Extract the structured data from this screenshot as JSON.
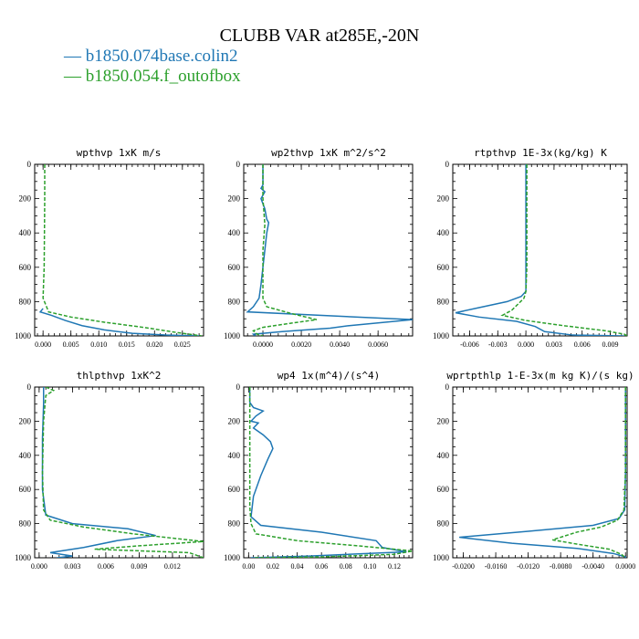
{
  "title": "CLUBB VAR at285E,-20N",
  "legend": [
    {
      "label": "— b1850.074base.colin2",
      "color": "#1f77b4"
    },
    {
      "label": "— b1850.054.f_outofbox",
      "color": "#2ca02c"
    }
  ],
  "chart_data": [
    {
      "type": "line",
      "title": "wpthvp  1xK m/s",
      "xlim": [
        -0.0015,
        0.0288
      ],
      "ylim": [
        1000,
        0
      ],
      "xticks": [
        "0.000",
        "0.005",
        "0.010",
        "0.015",
        "0.020",
        "0.025"
      ],
      "xtick_values": [
        0,
        0.005,
        0.01,
        0.015,
        0.02,
        0.025
      ],
      "yticks": [
        0,
        200,
        400,
        600,
        800,
        1000
      ],
      "series": [
        {
          "color": "#1f77b4",
          "dash": false,
          "points": [
            [
              0,
              840
            ],
            [
              -0.0005,
              860
            ],
            [
              0.0015,
              880
            ],
            [
              0.004,
              910
            ],
            [
              0.007,
              940
            ],
            [
              0.011,
              965
            ],
            [
              0.016,
              985
            ],
            [
              0.022,
              995
            ],
            [
              0.028,
              1000
            ]
          ]
        },
        {
          "color": "#2ca02c",
          "dash": true,
          "points": [
            [
              0.0003,
              0
            ],
            [
              0.0003,
              200
            ],
            [
              0.0002,
              600
            ],
            [
              0,
              780
            ],
            [
              0.001,
              860
            ],
            [
              0.005,
              890
            ],
            [
              0.011,
              920
            ],
            [
              0.018,
              950
            ],
            [
              0.024,
              980
            ],
            [
              0.0285,
              1000
            ]
          ]
        }
      ]
    },
    {
      "type": "line",
      "title": "wp2thvp  1xK m^2/s^2",
      "xlim": [
        -0.001,
        0.0078
      ],
      "ylim": [
        1000,
        0
      ],
      "xticks": [
        "0.0000",
        "0.0020",
        "0.0040",
        "0.0060"
      ],
      "xtick_values": [
        0,
        0.002,
        0.004,
        0.006
      ],
      "yticks": [
        0,
        200,
        400,
        600,
        800,
        1000
      ],
      "series": [
        {
          "color": "#1f77b4",
          "dash": false,
          "points": [
            [
              0,
              0
            ],
            [
              0,
              120
            ],
            [
              -0.0001,
              140
            ],
            [
              0.0001,
              160
            ],
            [
              -0.0001,
              200
            ],
            [
              0.0001,
              260
            ],
            [
              0.0002,
              320
            ],
            [
              0.0003,
              340
            ],
            [
              0.0002,
              400
            ],
            [
              0.0001,
              500
            ],
            [
              0,
              600
            ],
            [
              -0.0001,
              700
            ],
            [
              -0.0002,
              780
            ],
            [
              -0.0005,
              830
            ],
            [
              -0.0008,
              860
            ],
            [
              0.0078,
              905
            ],
            [
              0.0045,
              940
            ],
            [
              0.0035,
              955
            ],
            [
              0.001,
              975
            ],
            [
              -0.0005,
              990
            ],
            [
              -0.0004,
              1000
            ]
          ]
        },
        {
          "color": "#2ca02c",
          "dash": true,
          "points": [
            [
              0,
              0
            ],
            [
              0,
              120
            ],
            [
              0,
              200
            ],
            [
              0.0001,
              350
            ],
            [
              0,
              500
            ],
            [
              0,
              700
            ],
            [
              0,
              780
            ],
            [
              0.0002,
              830
            ],
            [
              0.0015,
              870
            ],
            [
              0.0028,
              905
            ],
            [
              0.0012,
              930
            ],
            [
              0,
              950
            ],
            [
              -0.0005,
              970
            ],
            [
              -0.0003,
              990
            ],
            [
              0,
              1000
            ]
          ]
        }
      ]
    },
    {
      "type": "line",
      "title": "rtpthvp  1E-3x(kg/kg) K",
      "xlim": [
        -0.0078,
        0.0108
      ],
      "ylim": [
        1000,
        0
      ],
      "xticks": [
        "-0.006",
        "-0.003",
        "0.000",
        "0.003",
        "0.006",
        "0.009"
      ],
      "xtick_values": [
        -0.006,
        -0.003,
        0,
        0.003,
        0.006,
        0.009
      ],
      "yticks": [
        0,
        200,
        400,
        600,
        800,
        1000
      ],
      "series": [
        {
          "color": "#1f77b4",
          "dash": false,
          "points": [
            [
              0,
              0
            ],
            [
              0,
              200
            ],
            [
              0,
              500
            ],
            [
              0,
              740
            ],
            [
              -0.0005,
              770
            ],
            [
              -0.002,
              800
            ],
            [
              -0.005,
              835
            ],
            [
              -0.0075,
              865
            ],
            [
              -0.005,
              890
            ],
            [
              -0.001,
              915
            ],
            [
              0.001,
              945
            ],
            [
              0.002,
              975
            ],
            [
              0.005,
              995
            ],
            [
              0.0105,
              1000
            ]
          ]
        },
        {
          "color": "#2ca02c",
          "dash": true,
          "points": [
            [
              0.0001,
              0
            ],
            [
              0.0001,
              300
            ],
            [
              0.0001,
              600
            ],
            [
              0,
              740
            ],
            [
              -0.0002,
              780
            ],
            [
              -0.0015,
              850
            ],
            [
              -0.0025,
              880
            ],
            [
              0,
              910
            ],
            [
              0.004,
              940
            ],
            [
              0.0085,
              970
            ],
            [
              0.0105,
              990
            ],
            [
              0.0108,
              1000
            ]
          ]
        }
      ]
    },
    {
      "type": "line",
      "title": "thlpthvp  1xK^2",
      "xlim": [
        -0.0004,
        0.0148
      ],
      "ylim": [
        1000,
        0
      ],
      "xticks": [
        "0.000",
        "0.003",
        "0.006",
        "0.009",
        "0.012"
      ],
      "xtick_values": [
        0,
        0.003,
        0.006,
        0.009,
        0.012
      ],
      "yticks": [
        0,
        200,
        400,
        600,
        800,
        1000
      ],
      "series": [
        {
          "color": "#1f77b4",
          "dash": false,
          "points": [
            [
              0.0004,
              0
            ],
            [
              0.0004,
              100
            ],
            [
              0.0003,
              300
            ],
            [
              0.0003,
              600
            ],
            [
              0.0006,
              750
            ],
            [
              0.003,
              800
            ],
            [
              0.008,
              830
            ],
            [
              0.0105,
              870
            ],
            [
              0.007,
              900
            ],
            [
              0.004,
              940
            ],
            [
              0.001,
              970
            ],
            [
              0.003,
              990
            ],
            [
              0.0016,
              1000
            ]
          ]
        },
        {
          "color": "#2ca02c",
          "dash": true,
          "points": [
            [
              0.0006,
              0
            ],
            [
              0.0013,
              20
            ],
            [
              0.0006,
              50
            ],
            [
              0.0004,
              200
            ],
            [
              0.0003,
              500
            ],
            [
              0.0004,
              720
            ],
            [
              0.001,
              780
            ],
            [
              0.004,
              820
            ],
            [
              0.0085,
              860
            ],
            [
              0.0148,
              905
            ],
            [
              0.009,
              930
            ],
            [
              0.005,
              950
            ],
            [
              0.0135,
              970
            ],
            [
              0.0148,
              1000
            ]
          ]
        }
      ]
    },
    {
      "type": "line",
      "title": "wp4  1x(m^4)/(s^4)",
      "xlim": [
        -0.004,
        0.135
      ],
      "ylim": [
        1000,
        0
      ],
      "xticks": [
        "0.00",
        "0.02",
        "0.04",
        "0.06",
        "0.08",
        "0.10",
        "0.12"
      ],
      "xtick_values": [
        0,
        0.02,
        0.04,
        0.06,
        0.08,
        0.1,
        0.12
      ],
      "yticks": [
        0,
        200,
        400,
        600,
        800,
        1000
      ],
      "series": [
        {
          "color": "#1f77b4",
          "dash": false,
          "points": [
            [
              0.001,
              0
            ],
            [
              0.001,
              90
            ],
            [
              0.004,
              120
            ],
            [
              0.012,
              140
            ],
            [
              0.006,
              170
            ],
            [
              0.002,
              200
            ],
            [
              0.008,
              210
            ],
            [
              0.004,
              240
            ],
            [
              0.012,
              280
            ],
            [
              0.018,
              320
            ],
            [
              0.02,
              360
            ],
            [
              0.016,
              420
            ],
            [
              0.01,
              520
            ],
            [
              0.004,
              640
            ],
            [
              0.002,
              760
            ],
            [
              0.01,
              810
            ],
            [
              0.06,
              850
            ],
            [
              0.105,
              900
            ],
            [
              0.11,
              940
            ],
            [
              0.13,
              965
            ],
            [
              0.05,
              990
            ],
            [
              0.002,
              1000
            ]
          ]
        },
        {
          "color": "#2ca02c",
          "dash": true,
          "points": [
            [
              0.001,
              0
            ],
            [
              0.001,
              100
            ],
            [
              0.001,
              300
            ],
            [
              0.001,
              500
            ],
            [
              0.001,
              700
            ],
            [
              0.002,
              800
            ],
            [
              0.006,
              860
            ],
            [
              0.04,
              900
            ],
            [
              0.09,
              930
            ],
            [
              0.135,
              960
            ],
            [
              0.12,
              980
            ],
            [
              0.06,
              995
            ],
            [
              0.004,
              1000
            ]
          ]
        }
      ]
    },
    {
      "type": "line",
      "title": "wprtpthlp  1-E-3x(m kg K)/(s kg)",
      "xlim": [
        -0.0213,
        0.0002
      ],
      "ylim": [
        1000,
        0
      ],
      "xticks": [
        "-0.0200",
        "-0.0160",
        "-0.0120",
        "-0.0080",
        "-0.0040",
        "0.0000"
      ],
      "xtick_values": [
        -0.02,
        -0.016,
        -0.012,
        -0.008,
        -0.004,
        0
      ],
      "yticks": [
        0,
        200,
        400,
        600,
        800,
        1000
      ],
      "series": [
        {
          "color": "#1f77b4",
          "dash": false,
          "points": [
            [
              0,
              0
            ],
            [
              0,
              200
            ],
            [
              0,
              500
            ],
            [
              -0.0001,
              720
            ],
            [
              -0.0008,
              770
            ],
            [
              -0.004,
              810
            ],
            [
              -0.012,
              845
            ],
            [
              -0.0205,
              880
            ],
            [
              -0.014,
              915
            ],
            [
              -0.006,
              945
            ],
            [
              -0.0015,
              975
            ],
            [
              0,
              995
            ],
            [
              0,
              1000
            ]
          ]
        },
        {
          "color": "#2ca02c",
          "dash": true,
          "points": [
            [
              0,
              0
            ],
            [
              0,
              200
            ],
            [
              0,
              500
            ],
            [
              -0.0002,
              720
            ],
            [
              -0.001,
              780
            ],
            [
              -0.003,
              820
            ],
            [
              -0.006,
              850
            ],
            [
              -0.009,
              895
            ],
            [
              -0.006,
              920
            ],
            [
              -0.002,
              950
            ],
            [
              -0.0005,
              980
            ],
            [
              0,
              1000
            ]
          ]
        }
      ]
    }
  ]
}
